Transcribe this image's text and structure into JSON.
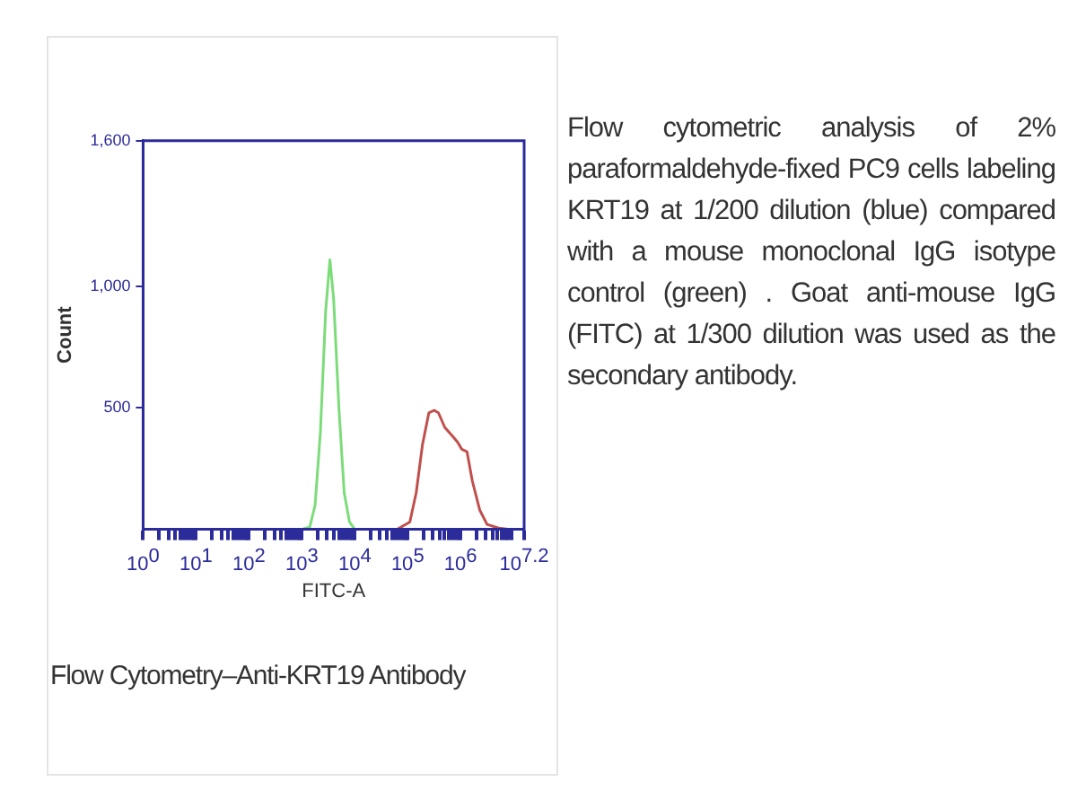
{
  "chart_data": {
    "type": "line",
    "xlabel": "FITC-A",
    "ylabel": "Count",
    "series": [
      {
        "color": "#7ddc7a",
        "x": [
          1000,
          1413,
          1778,
          2239,
          2818,
          3388,
          3981,
          5012,
          6310,
          7943,
          10000
        ],
        "values": [
          0,
          10,
          100,
          400,
          900,
          1110,
          950,
          500,
          150,
          30,
          0
        ]
      },
      {
        "color": "#c0504d",
        "x": [
          63096,
          109648,
          144544,
          190546,
          251189,
          316228,
          380189,
          501187,
          660693,
          870964,
          1047129,
          1318257,
          1659587,
          2290868,
          3162278,
          5248075,
          7943282
        ],
        "values": [
          0,
          30,
          150,
          350,
          480,
          490,
          480,
          420,
          390,
          360,
          330,
          320,
          200,
          80,
          20,
          5,
          0
        ]
      }
    ],
    "log": "x",
    "xlim": [
      1,
      15848932
    ],
    "xticks": [
      {
        "value": 1,
        "label": "10$^{0}$"
      },
      {
        "value": 10,
        "label": "10$^{1}$"
      },
      {
        "value": 100,
        "label": "10$^{2}$"
      },
      {
        "value": 1000,
        "label": "10$^{3}$"
      },
      {
        "value": 10000,
        "label": "10$^{4}$"
      },
      {
        "value": 100000,
        "label": "10$^{5}$"
      },
      {
        "value": 1000000,
        "label": "10$^{6}$"
      },
      {
        "value": 15848932,
        "label": "10$^{7.2}$"
      },
      {
        "value": 2,
        "label": null
      },
      {
        "value": 3,
        "label": null
      },
      {
        "value": 4,
        "label": null
      },
      {
        "value": 5,
        "label": null
      },
      {
        "value": 6,
        "label": null
      },
      {
        "value": 7,
        "label": null
      },
      {
        "value": 8,
        "label": null
      },
      {
        "value": 9,
        "label": null
      },
      {
        "value": 20,
        "label": null
      },
      {
        "value": 30,
        "label": null
      },
      {
        "value": 40,
        "label": null
      },
      {
        "value": 50,
        "label": null
      },
      {
        "value": 60,
        "label": null
      },
      {
        "value": 70,
        "label": null
      },
      {
        "value": 80,
        "label": null
      },
      {
        "value": 90,
        "label": null
      },
      {
        "value": 200,
        "label": null
      },
      {
        "value": 300,
        "label": null
      },
      {
        "value": 400,
        "label": null
      },
      {
        "value": 500,
        "label": null
      },
      {
        "value": 600,
        "label": null
      },
      {
        "value": 700,
        "label": null
      },
      {
        "value": 800,
        "label": null
      },
      {
        "value": 900,
        "label": null
      },
      {
        "value": 2000,
        "label": null
      },
      {
        "value": 3000,
        "label": null
      },
      {
        "value": 4000,
        "label": null
      },
      {
        "value": 5000,
        "label": null
      },
      {
        "value": 6000,
        "label": null
      },
      {
        "value": 7000,
        "label": null
      },
      {
        "value": 8000,
        "label": null
      },
      {
        "value": 9000,
        "label": null
      },
      {
        "value": 20000,
        "label": null
      },
      {
        "value": 30000,
        "label": null
      },
      {
        "value": 40000,
        "label": null
      },
      {
        "value": 50000,
        "label": null
      },
      {
        "value": 60000,
        "label": null
      },
      {
        "value": 70000,
        "label": null
      },
      {
        "value": 80000,
        "label": null
      },
      {
        "value": 90000,
        "label": null
      },
      {
        "value": 200000,
        "label": null
      },
      {
        "value": 300000,
        "label": null
      },
      {
        "value": 400000,
        "label": null
      },
      {
        "value": 500000,
        "label": null
      },
      {
        "value": 600000,
        "label": null
      },
      {
        "value": 700000,
        "label": null
      },
      {
        "value": 800000,
        "label": null
      },
      {
        "value": 900000,
        "label": null
      },
      {
        "value": 2000000,
        "label": null
      },
      {
        "value": 3000000,
        "label": null
      },
      {
        "value": 4000000,
        "label": null
      },
      {
        "value": 5000000,
        "label": null
      },
      {
        "value": 6000000,
        "label": null
      },
      {
        "value": 7000000,
        "label": null
      },
      {
        "value": 8000000,
        "label": null
      },
      {
        "value": 9000000,
        "label": null
      }
    ],
    "ylim": [
      0,
      1600
    ],
    "yticks": [
      500,
      {
        "value": 1000,
        "label": "1,000"
      },
      {
        "value": 1600,
        "label": "1,600"
      }
    ],
    "grid": false,
    "legend": false,
    "marker": "none",
    "line_style": "solid",
    "annotations": [
      "Flow cytometric analysis of 2% paraformaldehyde-fixed PC9 cells labeling KRT19 at 1/200 dilution (blue) compared with a mouse monoclonal IgG isotype control (green) . Goat anti-mouse IgG (FITC) at 1/300 dilution was used as the secondary antibody.",
      "Flow Cytometry–Anti-KRT19 Antibody"
    ]
  }
}
